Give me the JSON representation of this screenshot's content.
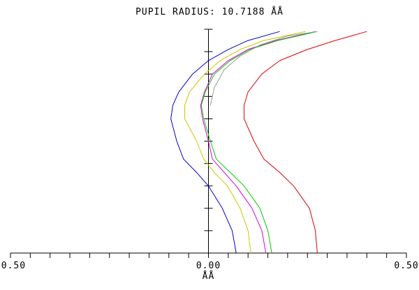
{
  "title": "PUPIL RADIUS: 10.7188  ÅÅ",
  "chart_data": {
    "type": "line",
    "title": "PUPIL RADIUS: 10.7188  ÅÅ",
    "xlabel": "ÅÅ",
    "ylabel": "",
    "xlim": [
      -0.5,
      0.5
    ],
    "ylim": [
      0,
      1
    ],
    "grid": false,
    "xticks": [
      "-0.50",
      "0.00",
      "0.50"
    ],
    "series": [
      {
        "color": "#0000cc",
        "points": [
          [
            0.07,
            0.0
          ],
          [
            0.06,
            0.1
          ],
          [
            0.035,
            0.2
          ],
          [
            0.0,
            0.3
          ],
          [
            -0.03,
            0.36
          ],
          [
            -0.063,
            0.42
          ],
          [
            -0.08,
            0.5
          ],
          [
            -0.095,
            0.6
          ],
          [
            -0.09,
            0.66
          ],
          [
            -0.075,
            0.72
          ],
          [
            -0.04,
            0.8
          ],
          [
            0.0,
            0.86
          ],
          [
            0.05,
            0.91
          ],
          [
            0.1,
            0.95
          ],
          [
            0.18,
            0.99
          ]
        ]
      },
      {
        "color": "#c8c800",
        "points": [
          [
            0.107,
            0.0
          ],
          [
            0.1,
            0.1
          ],
          [
            0.08,
            0.2
          ],
          [
            0.048,
            0.3
          ],
          [
            0.015,
            0.36
          ],
          [
            -0.012,
            0.42
          ],
          [
            -0.03,
            0.5
          ],
          [
            -0.06,
            0.6
          ],
          [
            -0.06,
            0.66
          ],
          [
            -0.048,
            0.72
          ],
          [
            -0.01,
            0.8
          ],
          [
            0.03,
            0.86
          ],
          [
            0.08,
            0.91
          ],
          [
            0.14,
            0.95
          ],
          [
            0.245,
            0.99
          ]
        ]
      },
      {
        "color": "#dd00dd",
        "points": [
          [
            0.145,
            0.0
          ],
          [
            0.135,
            0.1
          ],
          [
            0.11,
            0.2
          ],
          [
            0.07,
            0.3
          ],
          [
            0.04,
            0.36
          ],
          [
            0.01,
            0.42
          ],
          [
            0.0,
            0.5
          ],
          [
            -0.015,
            0.6
          ],
          [
            -0.02,
            0.66
          ],
          [
            -0.01,
            0.72
          ],
          [
            0.01,
            0.8
          ],
          [
            0.05,
            0.86
          ],
          [
            0.1,
            0.91
          ],
          [
            0.17,
            0.95
          ],
          [
            0.27,
            0.99
          ]
        ]
      },
      {
        "color": "#00cc00",
        "points": [
          [
            0.16,
            0.0
          ],
          [
            0.15,
            0.1
          ],
          [
            0.13,
            0.2
          ],
          [
            0.09,
            0.3
          ],
          [
            0.055,
            0.36
          ],
          [
            0.02,
            0.42
          ],
          [
            0.005,
            0.5
          ],
          [
            -0.012,
            0.6
          ],
          [
            -0.018,
            0.66
          ],
          [
            -0.008,
            0.72
          ],
          [
            0.015,
            0.8
          ],
          [
            0.055,
            0.86
          ],
          [
            0.105,
            0.91
          ],
          [
            0.175,
            0.95
          ],
          [
            0.275,
            0.99
          ]
        ]
      },
      {
        "color": "#999999",
        "points": [
          [
            0.005,
            0.66
          ],
          [
            0.015,
            0.74
          ],
          [
            0.04,
            0.82
          ],
          [
            0.08,
            0.88
          ],
          [
            0.13,
            0.93
          ],
          [
            0.2,
            0.97
          ],
          [
            0.275,
            0.99
          ]
        ]
      },
      {
        "color": "#dd0000",
        "points": [
          [
            0.275,
            0.0
          ],
          [
            0.27,
            0.1
          ],
          [
            0.255,
            0.2
          ],
          [
            0.215,
            0.3
          ],
          [
            0.18,
            0.36
          ],
          [
            0.14,
            0.42
          ],
          [
            0.115,
            0.5
          ],
          [
            0.09,
            0.6
          ],
          [
            0.09,
            0.66
          ],
          [
            0.1,
            0.72
          ],
          [
            0.135,
            0.8
          ],
          [
            0.18,
            0.86
          ],
          [
            0.25,
            0.91
          ],
          [
            0.32,
            0.95
          ],
          [
            0.4,
            0.99
          ]
        ]
      }
    ]
  }
}
